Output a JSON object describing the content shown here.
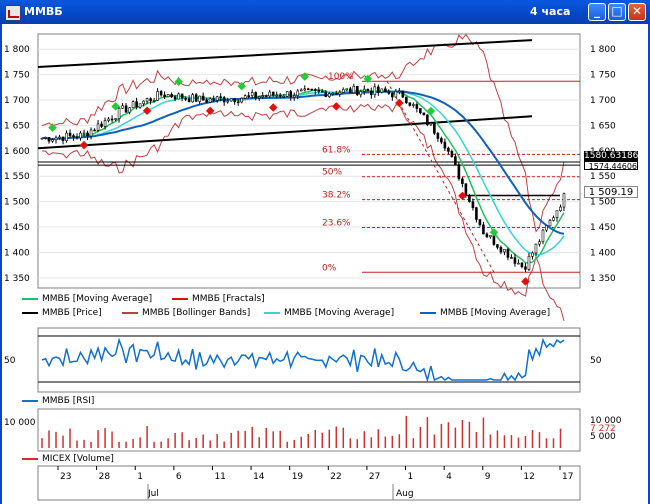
{
  "window": {
    "title": "ММВБ",
    "period": "4 часа",
    "buttons": {
      "minimize": "_",
      "maximize": "□",
      "close": "✕"
    }
  },
  "colors": {
    "price_candle": "#000000",
    "fractal_up": "#22cc33",
    "fractal_down": "#e01010",
    "bollinger": "#c04040",
    "ma_green": "#20c060",
    "ma_cyan": "#30d8d0",
    "ma_blue": "#1060c0",
    "channel": "#000000",
    "fibo": "#c02020",
    "rsi": "#1070d0",
    "volume": "#d03030"
  },
  "price_panel": {
    "y_ticks": [
      "1 800",
      "1 750",
      "1 700",
      "1 650",
      "1 600",
      "1 550",
      "1 500",
      "1 450",
      "1 400",
      "1 350"
    ],
    "y_values": [
      1800,
      1750,
      1700,
      1650,
      1600,
      1550,
      1500,
      1450,
      1400,
      1350
    ],
    "labels": {
      "price1": "1580.63186",
      "price2": "1574.44606",
      "current": "1 509.19"
    },
    "fibo": [
      {
        "label": "100%",
        "value": 1737
      },
      {
        "label": "61.8%",
        "value": 1593
      },
      {
        "label": "50%",
        "value": 1549
      },
      {
        "label": "38.2%",
        "value": 1504
      },
      {
        "label": "23.6%",
        "value": 1449
      },
      {
        "label": "0%",
        "value": 1361
      }
    ]
  },
  "legend": {
    "row1": [
      {
        "name": "ММВБ [Moving Average]",
        "color": "#20c060"
      },
      {
        "name": "ММВБ [Fractals]",
        "color": "#e01010"
      }
    ],
    "row2": [
      {
        "name": "ММВБ [Price]",
        "color": "#000000"
      },
      {
        "name": "ММВБ [Bollinger Bands]",
        "color": "#c04040"
      },
      {
        "name": "ММВБ [Moving Average]",
        "color": "#30d8d0"
      },
      {
        "name": "ММВБ [Moving Average]",
        "color": "#1060c0"
      }
    ]
  },
  "rsi_panel": {
    "tick": "50",
    "legend": "ММВБ [RSI]"
  },
  "volume_panel": {
    "y_ticks": [
      "10 000",
      "5 000"
    ],
    "left_tick": "10 000",
    "current": "7 272",
    "legend": "MICEX [Volume]"
  },
  "x_axis": {
    "days": [
      "23",
      "28",
      "1",
      "6",
      "11",
      "14",
      "19",
      "22",
      "27",
      "1",
      "4",
      "9",
      "12",
      "17"
    ],
    "months": [
      "Jul",
      "Aug"
    ]
  },
  "chart_data": {
    "type": "line",
    "title": "",
    "ylim": [
      1330,
      1830
    ],
    "x": [
      "23",
      "28",
      "1",
      "6",
      "11",
      "14",
      "19",
      "22",
      "27",
      "1",
      "4",
      "9",
      "12",
      "17"
    ],
    "series": [
      {
        "name": "ММВБ [Price]",
        "values": [
          1625,
          1630,
          1680,
          1712,
          1700,
          1705,
          1712,
          1715,
          1720,
          1710,
          1620,
          1440,
          1370,
          1509
        ]
      }
    ]
  }
}
